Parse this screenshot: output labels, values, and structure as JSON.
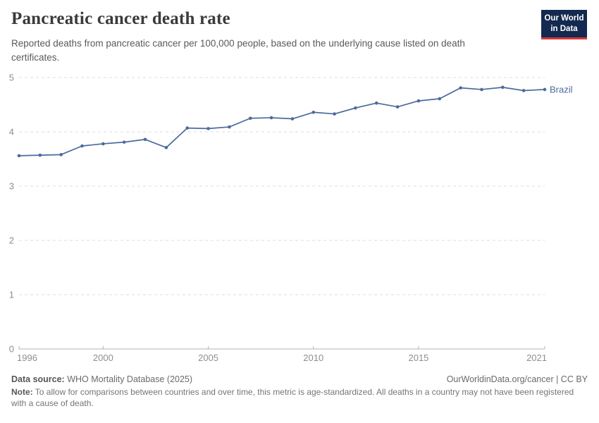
{
  "header": {
    "title": "Pancreatic cancer death rate",
    "subtitle": "Reported deaths from pancreatic cancer per 100,000 people, based on the underlying cause listed on death certificates.",
    "logo_line1": "Our World",
    "logo_line2": "in Data",
    "logo_bg_color": "#13294f",
    "logo_accent_color": "#d93a3a"
  },
  "chart_data": {
    "type": "line",
    "x": [
      1996,
      1997,
      1998,
      1999,
      2000,
      2001,
      2002,
      2003,
      2004,
      2005,
      2006,
      2007,
      2008,
      2009,
      2010,
      2011,
      2012,
      2013,
      2014,
      2015,
      2016,
      2017,
      2018,
      2019,
      2020,
      2021
    ],
    "series": [
      {
        "name": "Brazil",
        "color": "#4c6a9c",
        "values": [
          3.56,
          3.57,
          3.58,
          3.74,
          3.78,
          3.81,
          3.86,
          3.71,
          4.07,
          4.06,
          4.09,
          4.25,
          4.26,
          4.24,
          4.36,
          4.33,
          4.44,
          4.53,
          4.46,
          4.57,
          4.61,
          4.81,
          4.78,
          4.82,
          4.76,
          4.78
        ]
      }
    ],
    "title": "Pancreatic cancer death rate",
    "xlabel": "",
    "ylabel": "",
    "ylim": [
      0,
      5
    ],
    "yticks": [
      0,
      1,
      2,
      3,
      4,
      5
    ],
    "xticks": [
      1996,
      2000,
      2005,
      2010,
      2015,
      2021
    ],
    "grid": "horizontal-dashed",
    "legend_position": "end-of-line",
    "axis_text_color": "#8e8e8e",
    "grid_color": "#dcdcdc",
    "axis_line_color": "#b3b3b3"
  },
  "footer": {
    "datasource_label": "Data source:",
    "datasource_value": " WHO Mortality Database (2025)",
    "link": "OurWorldinData.org/cancer | CC BY",
    "note_label": "Note:",
    "note_value": " To allow for comparisons between countries and over time, this metric is age-standardized. All deaths in a country may not have been registered with a cause of death."
  }
}
